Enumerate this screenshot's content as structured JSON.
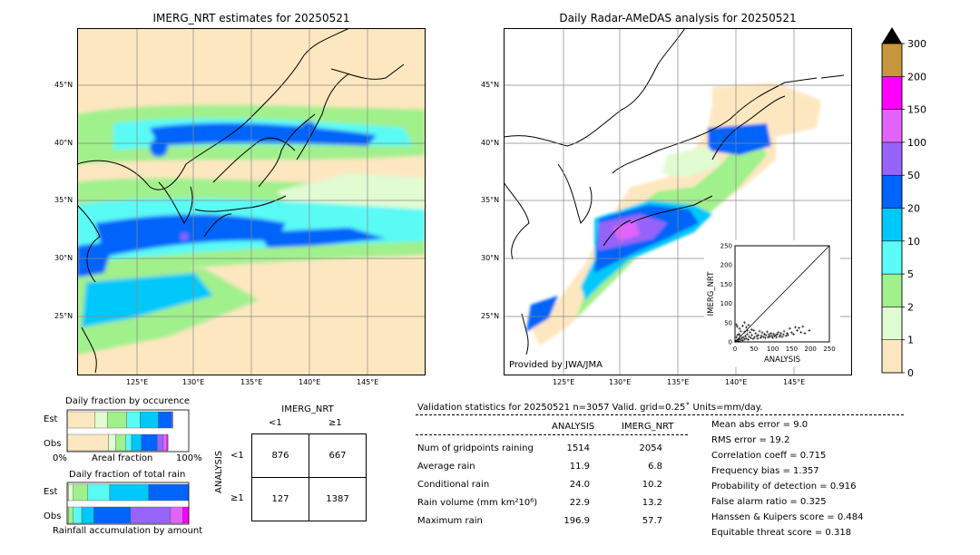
{
  "maps": {
    "left_title": "IMERG_NRT estimates for 20250521",
    "right_title": "Daily Radar-AMeDAS analysis for 20250521",
    "lat_labels": [
      "45°N",
      "40°N",
      "35°N",
      "30°N",
      "25°N"
    ],
    "lon_labels": [
      "125°E",
      "130°E",
      "135°E",
      "140°E",
      "145°E"
    ],
    "credit": "Provided by JWA/JMA"
  },
  "colors": {
    "land_bg": "#fde7c0",
    "levels": [
      "#fde7c0",
      "#e1fbd2",
      "#a0f08c",
      "#5afaf5",
      "#00c8fa",
      "#0064fa",
      "#9664fa",
      "#e164fa",
      "#ff00ff",
      "#c8963c"
    ]
  },
  "colorbar": {
    "ticks": [
      "0",
      "1",
      "2",
      "5",
      "10",
      "20",
      "50",
      "100",
      "150",
      "200",
      "300"
    ]
  },
  "fraction": {
    "occ_title": "Daily fraction by occurence",
    "total_title": "Daily fraction of total rain",
    "amount_title": "Rainfall accumulation by amount",
    "est_label": "Est",
    "obs_label": "Obs",
    "axis_left": "0%",
    "axis_mid": "Areal fraction",
    "axis_right": "100%"
  },
  "contingency": {
    "header": "IMERG_NRT",
    "col_lt": "<1",
    "col_ge": "≥1",
    "row_axis": "ANALYSIS",
    "row_lt": "<1",
    "row_ge": "≥1",
    "cells": [
      "876",
      "667",
      "127",
      "1387"
    ]
  },
  "stats": {
    "header": "Validation statistics for 20250521  n=3057 Valid. grid=0.25˚ Units=mm/day.",
    "col_analysis": "ANALYSIS",
    "col_imerg": "IMERG_NRT",
    "rows": [
      {
        "label": "Num of gridpoints raining",
        "analysis": "1514",
        "imerg": "2054"
      },
      {
        "label": "Average rain",
        "analysis": "11.9",
        "imerg": "6.8"
      },
      {
        "label": "Conditional rain",
        "analysis": "24.0",
        "imerg": "10.2"
      },
      {
        "label": "Rain volume (mm km²10⁶)",
        "analysis": "22.9",
        "imerg": "13.2"
      },
      {
        "label": "Maximum rain",
        "analysis": "196.9",
        "imerg": "57.7"
      }
    ],
    "scores": [
      "Mean abs error =    9.0",
      "RMS error =   19.2",
      "Correlation coeff =  0.715",
      "Frequency bias =  1.357",
      "Probability of detection =  0.916",
      "False alarm ratio =  0.325",
      "Hanssen & Kuipers score =  0.484",
      "Equitable threat score =  0.318"
    ]
  },
  "chart_data": [
    {
      "type": "scatter",
      "title": "",
      "xlabel": "ANALYSIS",
      "ylabel": "IMERG_NRT",
      "xlim": [
        0,
        250
      ],
      "ylim": [
        0,
        250
      ],
      "x_ticks": [
        "0",
        "50",
        "100",
        "150",
        "200",
        "250"
      ],
      "y_ticks": [
        "0",
        "50",
        "100",
        "150",
        "200",
        "250"
      ],
      "points": [
        [
          2,
          1
        ],
        [
          5,
          3
        ],
        [
          8,
          6
        ],
        [
          10,
          2
        ],
        [
          12,
          8
        ],
        [
          15,
          5
        ],
        [
          18,
          10
        ],
        [
          20,
          4
        ],
        [
          22,
          12
        ],
        [
          25,
          7
        ],
        [
          28,
          15
        ],
        [
          30,
          9
        ],
        [
          32,
          20
        ],
        [
          35,
          6
        ],
        [
          38,
          14
        ],
        [
          40,
          25
        ],
        [
          42,
          10
        ],
        [
          45,
          18
        ],
        [
          48,
          8
        ],
        [
          50,
          30
        ],
        [
          52,
          12
        ],
        [
          55,
          22
        ],
        [
          58,
          15
        ],
        [
          60,
          9
        ],
        [
          62,
          18
        ],
        [
          65,
          28
        ],
        [
          68,
          11
        ],
        [
          70,
          16
        ],
        [
          72,
          24
        ],
        [
          75,
          13
        ],
        [
          78,
          20
        ],
        [
          80,
          10
        ],
        [
          82,
          17
        ],
        [
          85,
          26
        ],
        [
          88,
          12
        ],
        [
          90,
          19
        ],
        [
          92,
          14
        ],
        [
          95,
          22
        ],
        [
          98,
          16
        ],
        [
          100,
          11
        ],
        [
          102,
          21
        ],
        [
          105,
          15
        ],
        [
          108,
          18
        ],
        [
          110,
          12
        ],
        [
          112,
          20
        ],
        [
          115,
          25
        ],
        [
          118,
          14
        ],
        [
          120,
          17
        ],
        [
          122,
          23
        ],
        [
          125,
          13
        ],
        [
          128,
          19
        ],
        [
          130,
          28
        ],
        [
          135,
          16
        ],
        [
          138,
          22
        ],
        [
          140,
          18
        ],
        [
          145,
          35
        ],
        [
          150,
          24
        ],
        [
          155,
          20
        ],
        [
          160,
          38
        ],
        [
          165,
          30
        ],
        [
          170,
          36
        ],
        [
          175,
          25
        ],
        [
          180,
          40
        ],
        [
          185,
          22
        ],
        [
          197,
          30
        ],
        [
          3,
          45
        ],
        [
          6,
          40
        ],
        [
          12,
          35
        ],
        [
          20,
          42
        ],
        [
          25,
          50
        ],
        [
          30,
          38
        ],
        [
          36,
          44
        ],
        [
          44,
          32
        ],
        [
          15,
          28
        ],
        [
          10,
          20
        ],
        [
          4,
          12
        ],
        [
          7,
          18
        ],
        [
          14,
          16
        ],
        [
          26,
          26
        ],
        [
          33,
          30
        ]
      ]
    },
    {
      "type": "bar",
      "title": "Daily fraction by occurence",
      "orientation": "horizontal-stacked",
      "categories": [
        "Est",
        "Obs"
      ],
      "series": [
        {
          "name": "0-1",
          "values": [
            0.23,
            0.34
          ]
        },
        {
          "name": "1-2",
          "values": [
            0.1,
            0.06
          ]
        },
        {
          "name": "2-5",
          "values": [
            0.16,
            0.08
          ]
        },
        {
          "name": "5-10",
          "values": [
            0.11,
            0.05
          ]
        },
        {
          "name": "10-20",
          "values": [
            0.15,
            0.08
          ]
        },
        {
          "name": "20-50",
          "values": [
            0.11,
            0.13
          ]
        },
        {
          "name": "50-100",
          "values": [
            0.01,
            0.05
          ]
        },
        {
          "name": "100-150",
          "values": [
            0,
            0.03
          ]
        },
        {
          "name": "150-200",
          "values": [
            0,
            0.01
          ]
        }
      ],
      "xlim": [
        0,
        1
      ]
    },
    {
      "type": "bar",
      "title": "Daily fraction of total rain",
      "orientation": "horizontal-stacked",
      "categories": [
        "Est",
        "Obs"
      ],
      "series": [
        {
          "name": "0-1",
          "values": [
            0.01,
            0.0
          ]
        },
        {
          "name": "1-2",
          "values": [
            0.04,
            0.01
          ]
        },
        {
          "name": "2-5",
          "values": [
            0.12,
            0.04
          ]
        },
        {
          "name": "5-10",
          "values": [
            0.18,
            0.07
          ]
        },
        {
          "name": "10-20",
          "values": [
            0.32,
            0.1
          ]
        },
        {
          "name": "20-50",
          "values": [
            0.33,
            0.3
          ]
        },
        {
          "name": "50-100",
          "values": [
            0.0,
            0.33
          ]
        },
        {
          "name": "100-150",
          "values": [
            0,
            0.1
          ]
        },
        {
          "name": "150-200",
          "values": [
            0,
            0.05
          ]
        }
      ],
      "xlim": [
        0,
        1
      ]
    }
  ]
}
